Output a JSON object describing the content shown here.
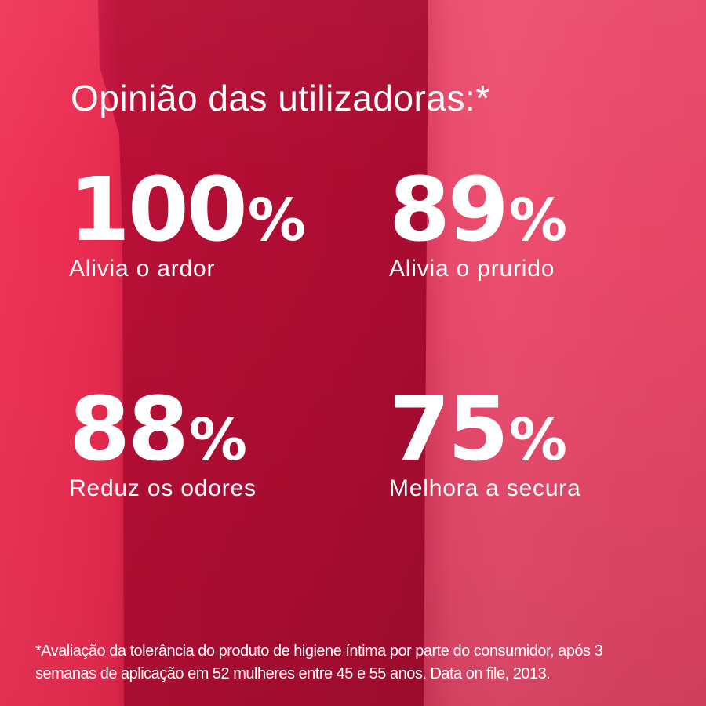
{
  "header": {
    "title": "Opinião das utilizadoras:*"
  },
  "stats": [
    {
      "value": "100",
      "percent_sign": "%",
      "label": "Alivia o ardor"
    },
    {
      "value": "89",
      "percent_sign": "%",
      "label": "Alivia o prurido"
    },
    {
      "value": "88",
      "percent_sign": "%",
      "label": "Reduz os odores"
    },
    {
      "value": "75",
      "percent_sign": "%",
      "label": "Melhora a secura"
    }
  ],
  "footnote": {
    "lines": [
      "*Avaliação da tolerância do produto de higiene íntima por parte do consumidor, após 3",
      "semanas de aplicação em 52 mulheres entre 45 e 55 anos. Data on file, 2013."
    ]
  },
  "colors": {
    "text": "#ffffff",
    "left_band": "#ea2d51",
    "middle_band": "#b30e34",
    "right_band": "#e94869"
  },
  "chart_data": {
    "type": "table",
    "title": "Opinião das utilizadoras:*",
    "categories": [
      "Alivia o ardor",
      "Alivia o prurido",
      "Reduz os odores",
      "Melhora a secura"
    ],
    "values": [
      100,
      89,
      88,
      75
    ],
    "unit": "%",
    "note": "*Avaliação da tolerância do produto de higiene íntima por parte do consumidor, após 3 semanas de aplicação em 52 mulheres entre 45 e 55 anos. Data on file, 2013."
  }
}
